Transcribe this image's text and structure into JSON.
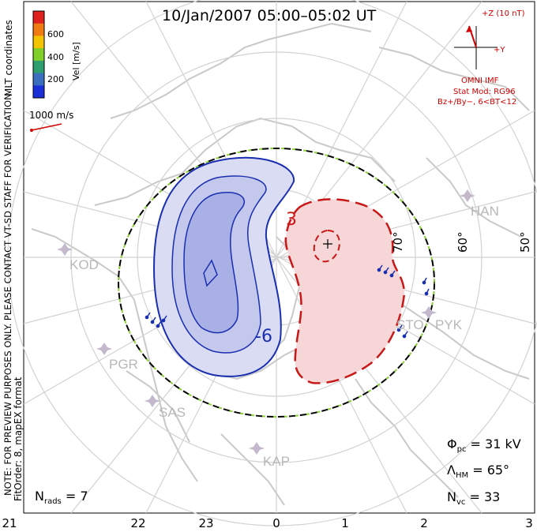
{
  "title": "10/Jan/2007 05:00–05:02 UT",
  "colorbar": {
    "label": "Vel [m/s]",
    "ticks": [
      "600",
      "400",
      "200"
    ],
    "colors": [
      "#e0201c",
      "#f07b10",
      "#f5c400",
      "#7fcf2a",
      "#2e9e6e",
      "#3a6fc0",
      "#1a2fd8"
    ]
  },
  "vector_scale": {
    "label": "1000 m/s",
    "color": "#d40000"
  },
  "vertical_notes": {
    "coords": "MLT coordinates",
    "preview": "NOTE: FOR PREVIEW PURPOSES ONLY. PLEASE CONTACT VT-SD STAFF FOR VERIFICATION.",
    "fit": "FitOrder: 8, mapEX format"
  },
  "imf": {
    "z_label": "+Z (10 nT)",
    "y_label": "+Y",
    "source": "OMNI IMF",
    "model": "Stat Mod: RG96",
    "condition": "Bz+/By−, 6<BT<12"
  },
  "contours": {
    "negative_label": "-6",
    "positive_label": "3",
    "negative_fill": "#d9dcf2",
    "negative_line": "#1a2fb0",
    "positive_fill": "#f6d6d6",
    "positive_line": "#c81818"
  },
  "latitude_labels": [
    "70°",
    "60°",
    "50°"
  ],
  "sites": [
    "KOD",
    "PGR",
    "SAS",
    "KAP",
    "STO",
    "PYK",
    "HAN"
  ],
  "mlt_ticks": [
    "21",
    "22",
    "23",
    "0",
    "1",
    "2",
    "3"
  ],
  "stats": {
    "phi_pc": {
      "symbol": "Φ",
      "sub": "pc",
      "value": "= 31 kV"
    },
    "lambda_hm": {
      "symbol": "Λ",
      "sub": "HM",
      "value": "= 65°"
    },
    "n_vc": {
      "symbol": "N",
      "sub": "vc",
      "value": "= 33"
    },
    "n_rads": {
      "symbol": "N",
      "sub": "rads",
      "value": "= 7"
    }
  }
}
